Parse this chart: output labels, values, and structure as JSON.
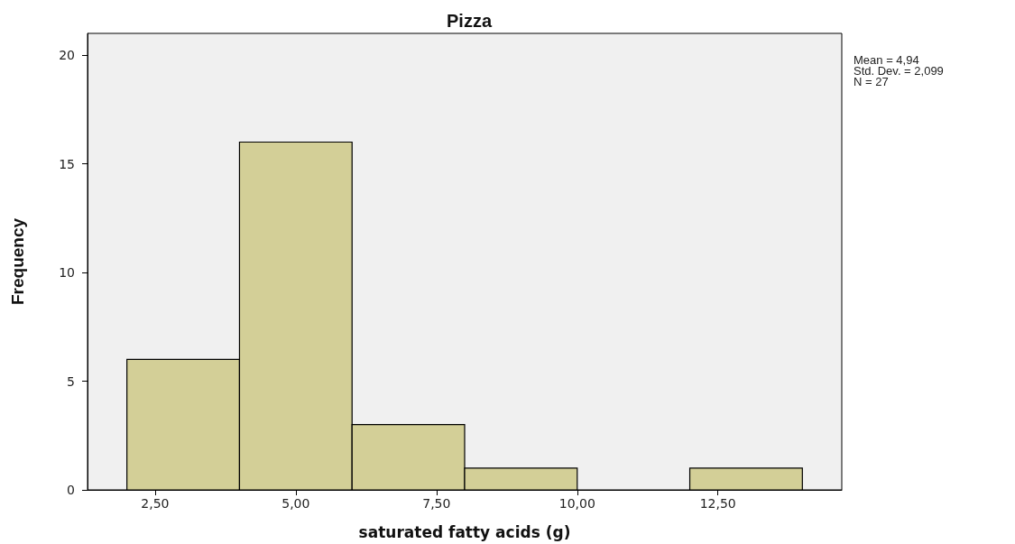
{
  "chart_data": {
    "type": "histogram",
    "title": "Pizza",
    "xlabel": "saturated fatty acids (g)",
    "ylabel": "Frequency",
    "bins": [
      2,
      4,
      6,
      8,
      10,
      12,
      14
    ],
    "values": [
      6,
      16,
      3,
      1,
      0,
      1
    ],
    "color": "#d3cf97",
    "xlim": [
      1.3,
      14.7
    ],
    "xticks": [
      {
        "value": 2.5,
        "label": "2,50"
      },
      {
        "value": 5,
        "label": "5,00"
      },
      {
        "value": 7.5,
        "label": "7,50"
      },
      {
        "value": 10,
        "label": "10,00"
      },
      {
        "value": 12.5,
        "label": "12,50"
      }
    ],
    "ylim": [
      0,
      21
    ],
    "yticks": [
      0,
      5,
      10,
      15,
      20
    ],
    "grid": false,
    "annotations": [
      "Mean = 4,94",
      "Std. Dev. = 2,099",
      "N = 27"
    ]
  }
}
